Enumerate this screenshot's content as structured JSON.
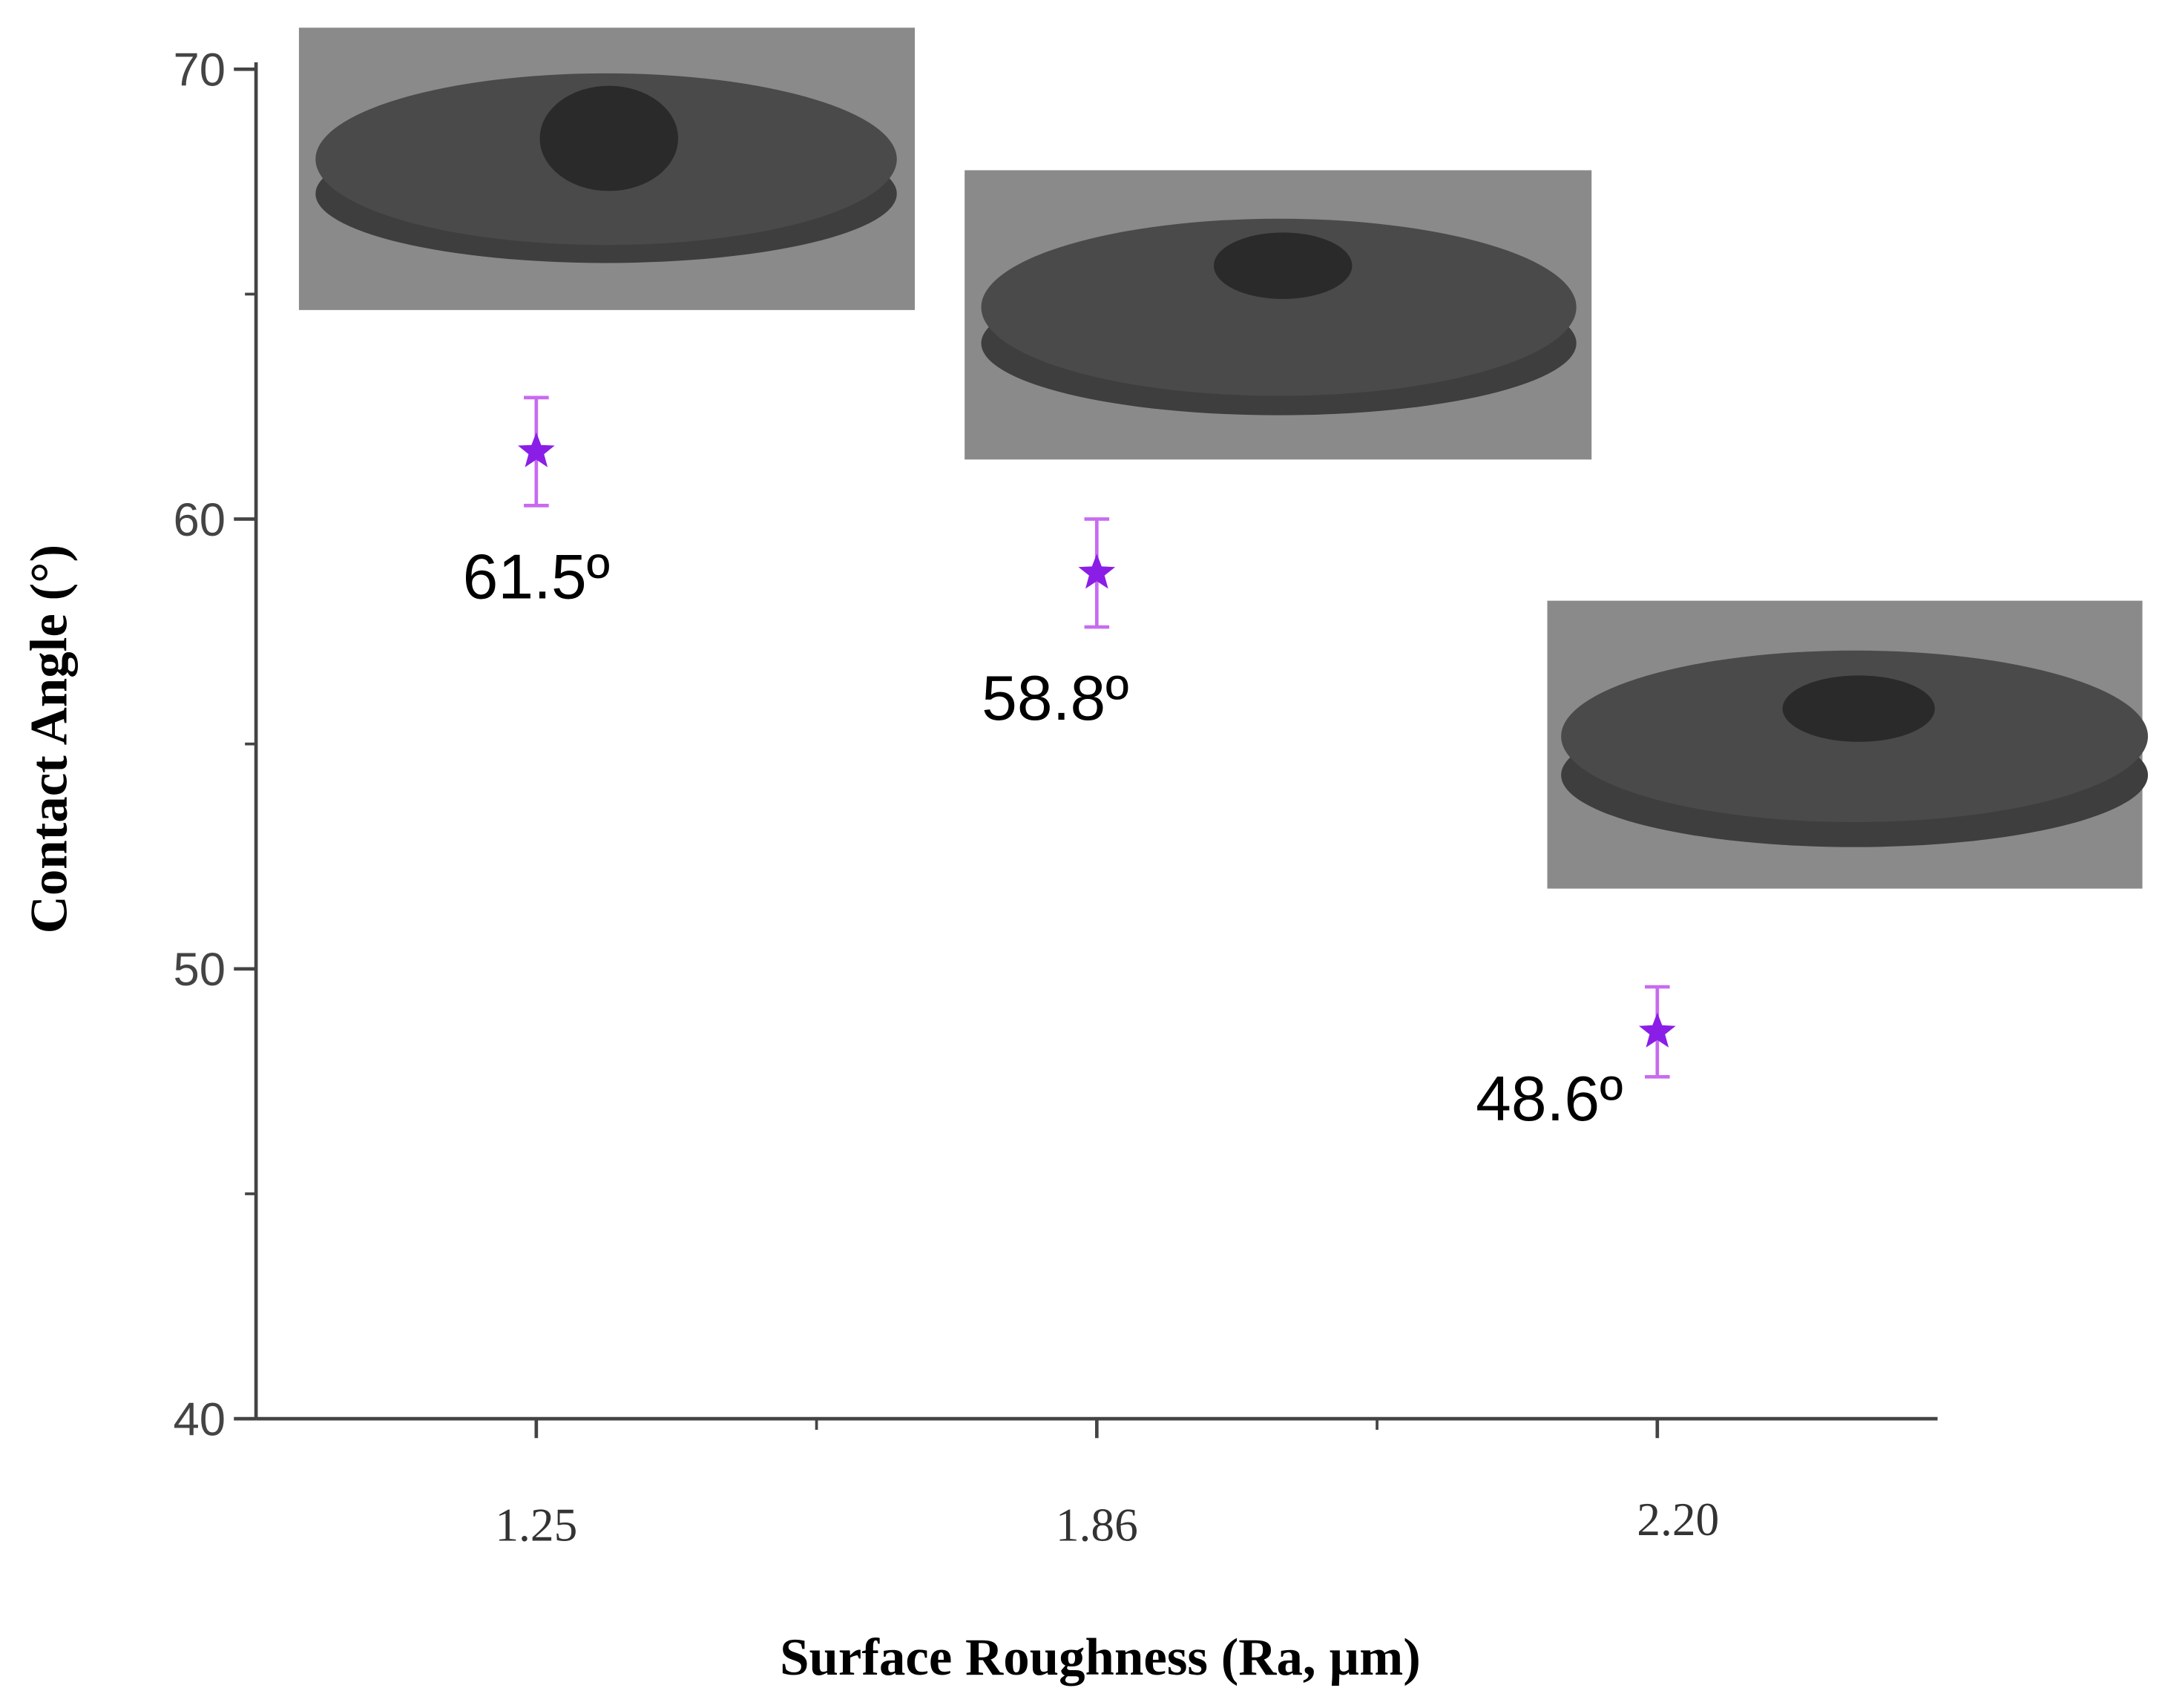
{
  "chart_data": {
    "type": "scatter",
    "x_label": "Surface Roughness (Ra, µm)",
    "y_label": "Contact Angle (°)",
    "categories": [
      "1.25",
      "1.86",
      "2.20"
    ],
    "series": [
      {
        "color": "#8b1ee6",
        "error_color": "#c86bf0",
        "values": [
          61.5,
          58.8,
          48.6
        ],
        "errors": [
          1.2,
          1.2,
          1.0
        ],
        "value_labels": [
          "61.5º",
          "58.8º",
          "48.6º"
        ]
      }
    ],
    "ylim": [
      40,
      70
    ],
    "yticks": [
      40,
      50,
      60,
      70
    ],
    "yminorticks": [
      45,
      55,
      65
    ]
  }
}
